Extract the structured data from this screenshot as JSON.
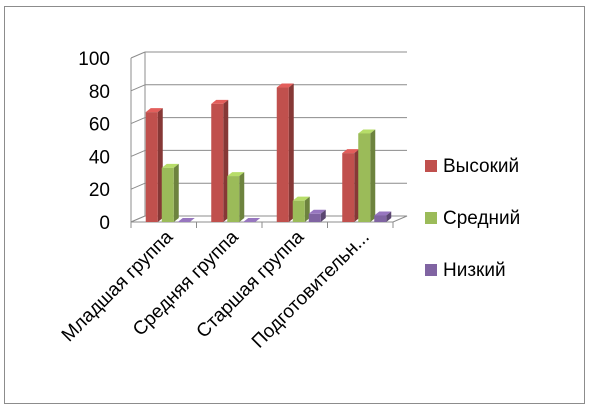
{
  "chart_data": {
    "type": "bar",
    "title": "",
    "xlabel": "",
    "ylabel": "",
    "ylim": [
      0,
      100
    ],
    "yticks": [
      0,
      20,
      40,
      60,
      80,
      100
    ],
    "grid": true,
    "three_d": true,
    "legend_position": "right",
    "categories": [
      "Младшая группа",
      "Средняя группа",
      "Старшая группа",
      "Подготовительн..."
    ],
    "series": [
      {
        "name": "Высокий",
        "color": "#c0504d",
        "values": [
          67,
          72,
          82,
          42
        ]
      },
      {
        "name": "Средний",
        "color": "#9bbb59",
        "values": [
          33,
          28,
          13,
          54
        ]
      },
      {
        "name": "Низкий",
        "color": "#8064a2",
        "values": [
          0,
          0,
          5,
          4
        ]
      }
    ]
  }
}
